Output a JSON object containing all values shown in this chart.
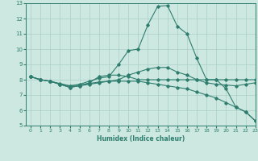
{
  "x": [
    0,
    1,
    2,
    3,
    4,
    5,
    6,
    7,
    8,
    9,
    10,
    11,
    12,
    13,
    14,
    15,
    16,
    17,
    18,
    19,
    20,
    21,
    22,
    23
  ],
  "line_peak": [
    8.2,
    8.0,
    7.9,
    7.7,
    7.6,
    7.7,
    7.9,
    8.1,
    8.2,
    9.0,
    9.9,
    10.0,
    11.6,
    12.8,
    12.85,
    11.5,
    11.0,
    9.4,
    8.0,
    8.0,
    7.4,
    6.2,
    5.9,
    5.3
  ],
  "line_flat": [
    8.2,
    8.0,
    7.9,
    7.7,
    7.5,
    7.6,
    7.8,
    8.2,
    8.3,
    8.3,
    8.2,
    8.0,
    8.0,
    8.0,
    8.0,
    8.0,
    8.0,
    8.0,
    8.0,
    8.0,
    8.0,
    8.0,
    8.0,
    8.0
  ],
  "line_mid": [
    8.2,
    8.0,
    7.9,
    7.75,
    7.6,
    7.65,
    7.75,
    7.85,
    7.9,
    8.0,
    8.3,
    8.5,
    8.7,
    8.8,
    8.8,
    8.5,
    8.3,
    8.0,
    7.8,
    7.7,
    7.65,
    7.6,
    7.7,
    7.8
  ],
  "line_decline": [
    8.2,
    8.0,
    7.9,
    7.7,
    7.5,
    7.6,
    7.7,
    7.8,
    7.9,
    7.9,
    7.9,
    7.9,
    7.8,
    7.7,
    7.6,
    7.5,
    7.4,
    7.2,
    7.0,
    6.8,
    6.5,
    6.2,
    5.9,
    5.3
  ],
  "color": "#2e7d6e",
  "bg_color": "#cce8e0",
  "grid_color": "#aacfc8",
  "xlabel": "Humidex (Indice chaleur)",
  "ylim": [
    5,
    13
  ],
  "xlim": [
    -0.5,
    23
  ],
  "yticks": [
    5,
    6,
    7,
    8,
    9,
    10,
    11,
    12,
    13
  ],
  "xticks": [
    0,
    1,
    2,
    3,
    4,
    5,
    6,
    7,
    8,
    9,
    10,
    11,
    12,
    13,
    14,
    15,
    16,
    17,
    18,
    19,
    20,
    21,
    22,
    23
  ]
}
